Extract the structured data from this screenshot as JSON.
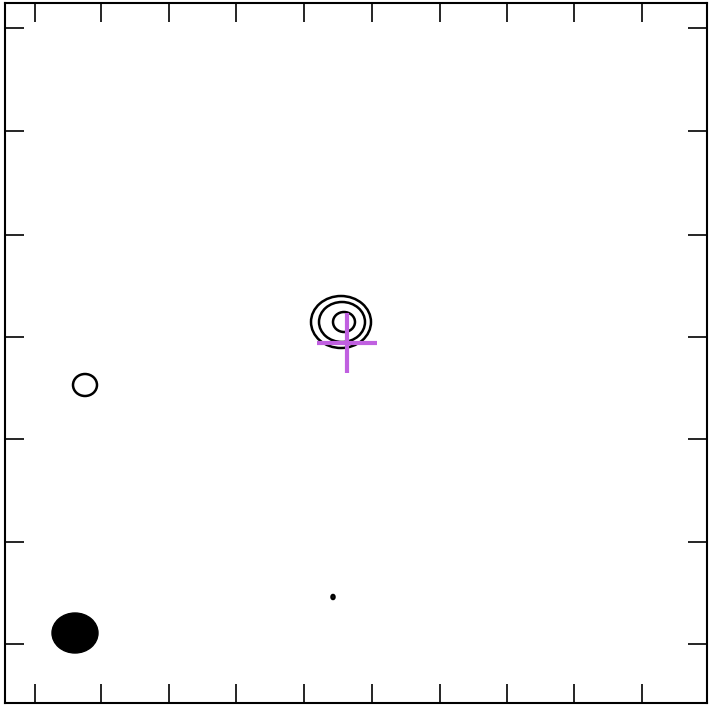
{
  "chart_data": {
    "type": "contour",
    "xlim": [
      0,
      702
    ],
    "ylim": [
      0,
      700
    ],
    "xticks": [
      30,
      96,
      164,
      231,
      299,
      367,
      435,
      502,
      569,
      637
    ],
    "yticks": [
      59,
      161,
      264,
      366,
      468,
      572,
      675
    ],
    "tick_labels": false,
    "color": "#000000",
    "contours": [
      {
        "x": 336,
        "y": 381,
        "width": 60,
        "height": 52
      },
      {
        "x": 337,
        "y": 381,
        "width": 46,
        "height": 40
      },
      {
        "x": 339,
        "y": 381,
        "width": 22,
        "height": 20
      },
      {
        "x": 80,
        "y": 318,
        "width": 24,
        "height": 22
      },
      {
        "x": 328,
        "y": 106,
        "width": 3,
        "height": 4
      }
    ],
    "beam": {
      "x": 70,
      "y": 70,
      "width": 46,
      "height": 40,
      "color": "#000000"
    },
    "cross": {
      "x": 342,
      "y": 360,
      "color": "#c060e0",
      "marker": "+"
    }
  }
}
